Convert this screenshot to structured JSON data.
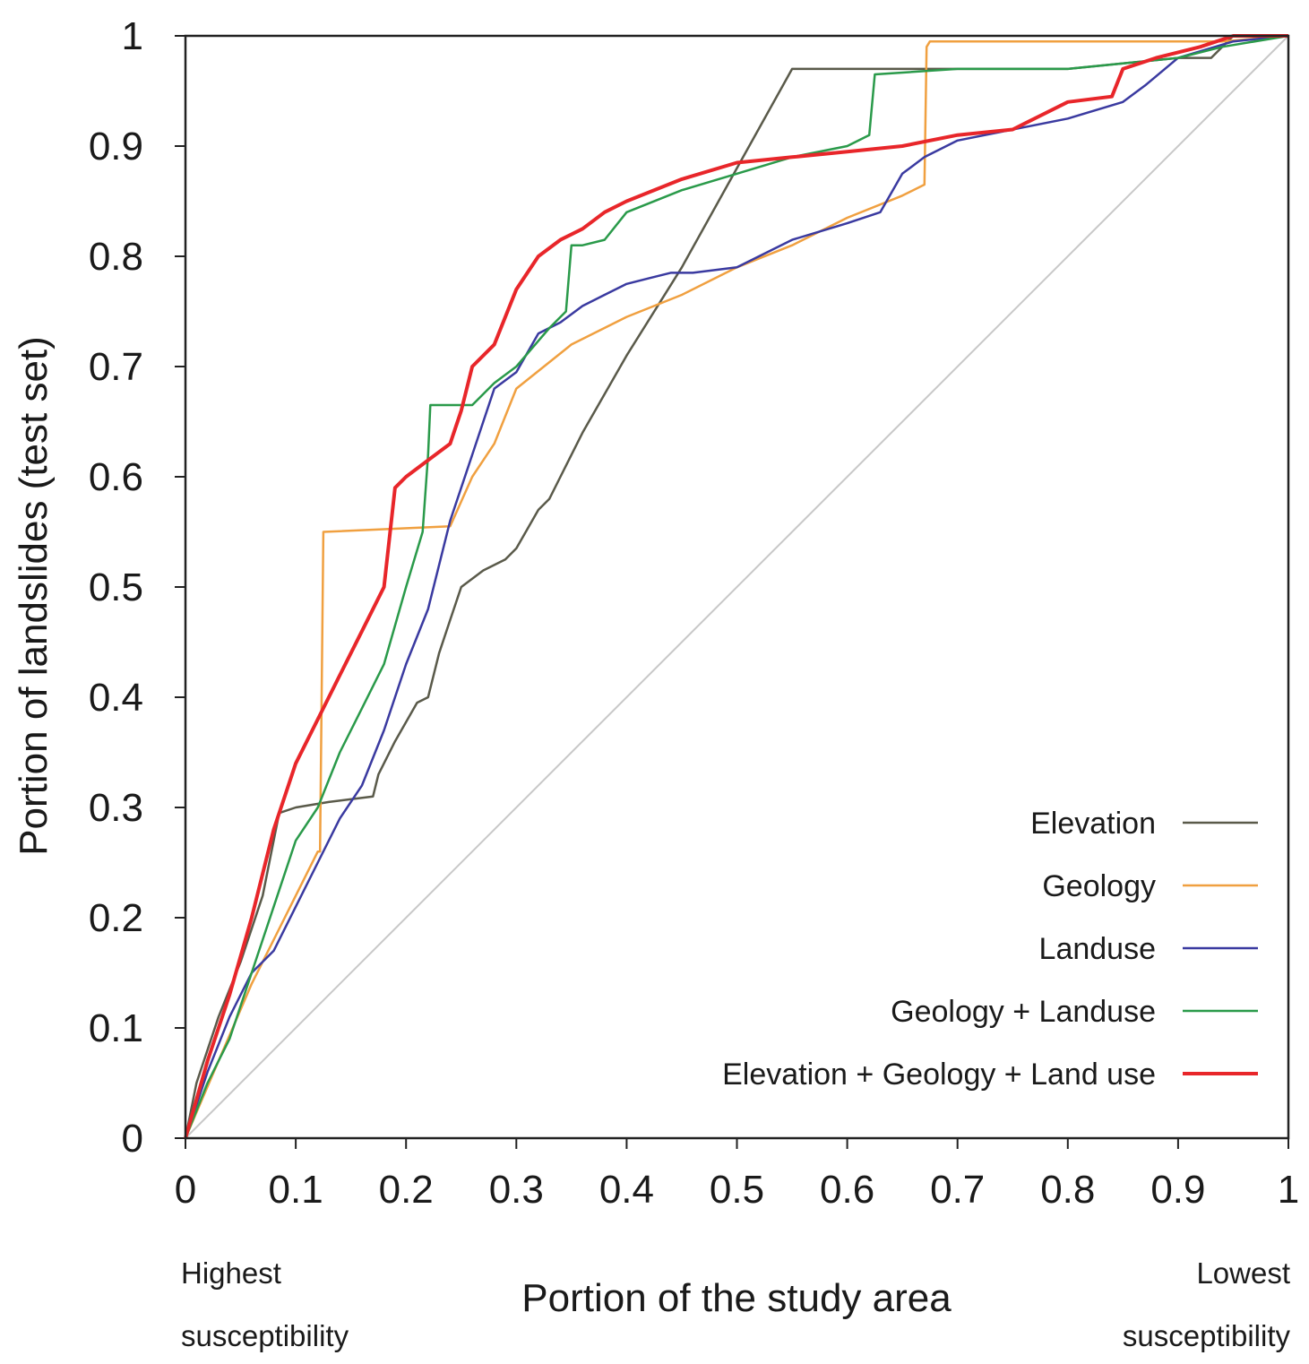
{
  "chart_data": {
    "type": "line",
    "xlabel": "Portion of the study area",
    "ylabel": "Portion of landslides (test set)",
    "xlim": [
      0,
      1
    ],
    "ylim": [
      0,
      1
    ],
    "x_ticks": [
      "0",
      "0.1",
      "0.2",
      "0.3",
      "0.4",
      "0.5",
      "0.6",
      "0.7",
      "0.8",
      "0.9",
      "1"
    ],
    "y_ticks": [
      "0",
      "0.1",
      "0.2",
      "0.3",
      "0.4",
      "0.5",
      "0.6",
      "0.7",
      "0.8",
      "0.9",
      "1"
    ],
    "x_tick_values": [
      0,
      0.1,
      0.2,
      0.3,
      0.4,
      0.5,
      0.6,
      0.7,
      0.8,
      0.9,
      1
    ],
    "y_tick_values": [
      0,
      0.1,
      0.2,
      0.3,
      0.4,
      0.5,
      0.6,
      0.7,
      0.8,
      0.9,
      1
    ],
    "x_left_note": [
      "Highest",
      "susceptibility"
    ],
    "x_right_note": [
      "Lowest",
      "susceptibility"
    ],
    "grid": false,
    "legend_position": "bottom-right",
    "reference_line": {
      "x": [
        0,
        1
      ],
      "y": [
        0,
        1
      ],
      "color": "#c8c8c8"
    },
    "series": [
      {
        "name": "Elevation",
        "color": "#5a5a4a",
        "x": [
          0,
          0.01,
          0.03,
          0.05,
          0.07,
          0.085,
          0.1,
          0.13,
          0.17,
          0.175,
          0.19,
          0.21,
          0.22,
          0.23,
          0.24,
          0.25,
          0.27,
          0.29,
          0.3,
          0.32,
          0.33,
          0.34,
          0.36,
          0.4,
          0.45,
          0.5,
          0.55,
          0.6,
          0.7,
          0.8,
          0.85,
          0.9,
          0.93,
          0.95,
          1
        ],
        "y": [
          0,
          0.05,
          0.11,
          0.16,
          0.22,
          0.295,
          0.3,
          0.305,
          0.31,
          0.33,
          0.36,
          0.395,
          0.4,
          0.44,
          0.47,
          0.5,
          0.515,
          0.525,
          0.535,
          0.57,
          0.58,
          0.6,
          0.64,
          0.71,
          0.79,
          0.88,
          0.97,
          0.97,
          0.97,
          0.97,
          0.975,
          0.98,
          0.98,
          1,
          1
        ]
      },
      {
        "name": "Geology",
        "color": "#f0a040",
        "x": [
          0,
          0.03,
          0.06,
          0.09,
          0.12,
          0.122,
          0.125,
          0.24,
          0.26,
          0.28,
          0.3,
          0.35,
          0.4,
          0.45,
          0.5,
          0.55,
          0.6,
          0.65,
          0.67,
          0.672,
          0.675,
          0.8,
          0.9,
          0.94,
          1
        ],
        "y": [
          0,
          0.07,
          0.14,
          0.2,
          0.26,
          0.26,
          0.55,
          0.555,
          0.6,
          0.63,
          0.68,
          0.72,
          0.745,
          0.765,
          0.79,
          0.81,
          0.835,
          0.855,
          0.865,
          0.99,
          0.995,
          0.995,
          0.995,
          0.995,
          1
        ]
      },
      {
        "name": "Landuse",
        "color": "#3a3aa0",
        "x": [
          0,
          0.02,
          0.04,
          0.06,
          0.08,
          0.1,
          0.12,
          0.14,
          0.16,
          0.18,
          0.2,
          0.22,
          0.24,
          0.26,
          0.28,
          0.3,
          0.32,
          0.34,
          0.36,
          0.38,
          0.4,
          0.42,
          0.44,
          0.46,
          0.5,
          0.55,
          0.6,
          0.63,
          0.65,
          0.67,
          0.7,
          0.75,
          0.8,
          0.85,
          0.87,
          0.9,
          0.95,
          1
        ],
        "y": [
          0,
          0.06,
          0.11,
          0.15,
          0.17,
          0.21,
          0.25,
          0.29,
          0.32,
          0.37,
          0.43,
          0.48,
          0.56,
          0.62,
          0.68,
          0.695,
          0.73,
          0.74,
          0.755,
          0.765,
          0.775,
          0.78,
          0.785,
          0.785,
          0.79,
          0.815,
          0.83,
          0.84,
          0.875,
          0.89,
          0.905,
          0.915,
          0.925,
          0.94,
          0.955,
          0.98,
          0.995,
          1
        ]
      },
      {
        "name": "Geology + Landuse",
        "color": "#2a9a4a",
        "x": [
          0,
          0.02,
          0.04,
          0.06,
          0.08,
          0.1,
          0.12,
          0.14,
          0.16,
          0.18,
          0.2,
          0.215,
          0.22,
          0.222,
          0.26,
          0.28,
          0.3,
          0.33,
          0.345,
          0.35,
          0.36,
          0.38,
          0.4,
          0.45,
          0.5,
          0.55,
          0.6,
          0.62,
          0.625,
          0.7,
          0.8,
          0.85,
          0.9,
          0.94,
          1
        ],
        "y": [
          0,
          0.05,
          0.09,
          0.15,
          0.21,
          0.27,
          0.3,
          0.35,
          0.39,
          0.43,
          0.5,
          0.55,
          0.62,
          0.665,
          0.665,
          0.685,
          0.7,
          0.735,
          0.75,
          0.81,
          0.81,
          0.815,
          0.84,
          0.86,
          0.875,
          0.89,
          0.9,
          0.91,
          0.965,
          0.97,
          0.97,
          0.975,
          0.98,
          0.99,
          1
        ]
      },
      {
        "name": "Elevation + Geology + Land use",
        "color": "#e8262a",
        "x": [
          0,
          0.02,
          0.04,
          0.06,
          0.08,
          0.1,
          0.12,
          0.14,
          0.16,
          0.18,
          0.19,
          0.2,
          0.22,
          0.24,
          0.25,
          0.26,
          0.28,
          0.3,
          0.32,
          0.34,
          0.36,
          0.38,
          0.4,
          0.45,
          0.5,
          0.55,
          0.6,
          0.65,
          0.7,
          0.75,
          0.8,
          0.84,
          0.85,
          0.88,
          0.92,
          0.95,
          1
        ],
        "y": [
          0,
          0.07,
          0.13,
          0.2,
          0.28,
          0.34,
          0.38,
          0.42,
          0.46,
          0.5,
          0.59,
          0.6,
          0.615,
          0.63,
          0.66,
          0.7,
          0.72,
          0.77,
          0.8,
          0.815,
          0.825,
          0.84,
          0.85,
          0.87,
          0.885,
          0.89,
          0.895,
          0.9,
          0.91,
          0.915,
          0.94,
          0.945,
          0.97,
          0.98,
          0.99,
          1,
          1
        ]
      }
    ]
  }
}
